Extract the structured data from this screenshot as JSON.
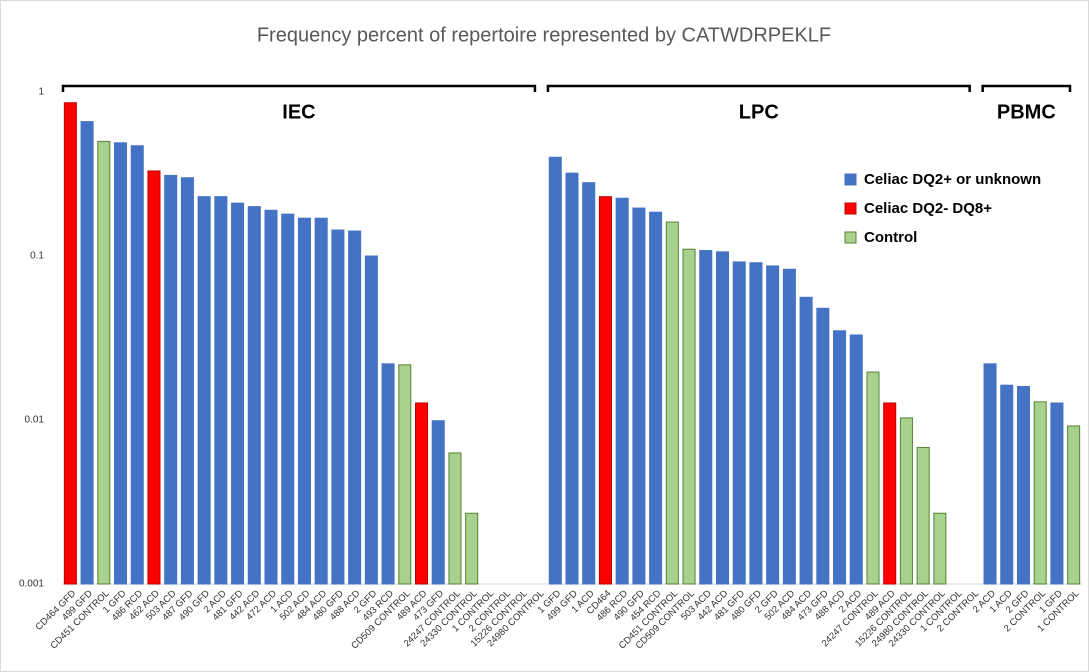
{
  "chart_data": {
    "type": "bar",
    "title": "Frequency percent of repertoire represented by CATWDRPEKLF",
    "yscale": "log",
    "ylim": [
      0.001,
      1
    ],
    "yticks": [
      0.001,
      0.01,
      0.1,
      1
    ],
    "grid": false,
    "legend": "upper right",
    "groups": [
      {
        "name": "IEC",
        "categories": [
          "CD464 GFD",
          "499 GFD",
          "CD451 CONTROL",
          "1 GFD",
          "486 RCD",
          "462 ACD",
          "503 ACD",
          "487 GFD",
          "490 GFD",
          "2 ACD",
          "481 GFD",
          "442 ACD",
          "472 ACD",
          "1 ACD",
          "502 ACD",
          "484 ACD",
          "480 GFD",
          "488 ACD",
          "2 GFD",
          "493 RCD",
          "CD509 CONTROL",
          "489 ACD",
          "473 GFD",
          "24247 CONTROL",
          "24330 CONTROL",
          "1 CONTROL",
          "2 CONTROL",
          "15226 CONTROL",
          "24980 CONTROL"
        ]
      },
      {
        "name": "LPC",
        "categories": [
          "1 GFD",
          "499 GFD",
          "1 ACD",
          "CD464",
          "486 RCD",
          "490 GFD",
          "454 RCD",
          "CD451 CONTROL",
          "CD509 CONTROL",
          "503 ACD",
          "442 ACD",
          "481 GFD",
          "480 GFD",
          "2 GFD",
          "502 ACD",
          "484 ACD",
          "473 GFD",
          "488 ACD",
          "2 ACD",
          "24247 CONTROL",
          "489 ACD",
          "15226 CONTROL",
          "24980 CONTROL",
          "24330 CONTROL",
          "1 CONTROL",
          "2 CONTROL"
        ]
      },
      {
        "name": "PBMC",
        "categories": [
          "2 ACD",
          "1 ACD",
          "2 GFD",
          "2 CONTROL",
          "1 GFD",
          "1 CONTROL"
        ]
      }
    ],
    "series": [
      {
        "name": "Celiac DQ2+ or unknown",
        "color": "#4472c4",
        "edgecolor": "#4472c4",
        "values": [
          null,
          0.66,
          null,
          0.49,
          0.47,
          null,
          0.31,
          0.3,
          0.23,
          0.23,
          0.21,
          0.2,
          0.19,
          0.18,
          0.17,
          0.17,
          0.144,
          0.142,
          0.1,
          0.022,
          null,
          null,
          0.0099,
          null,
          null,
          null,
          null,
          null,
          null,
          0.4,
          0.32,
          0.28,
          null,
          0.225,
          0.196,
          0.185,
          null,
          null,
          0.108,
          0.106,
          0.092,
          0.091,
          0.087,
          0.083,
          0.056,
          0.048,
          0.035,
          0.033,
          null,
          null,
          null,
          null,
          null,
          null,
          null,
          0.022,
          0.0163,
          0.016,
          null,
          0.0127,
          null
        ]
      },
      {
        "name": "Celiac DQ2- DQ8+",
        "color": "#ff0000",
        "edgecolor": "#c00000",
        "values": [
          0.86,
          null,
          null,
          null,
          null,
          0.33,
          null,
          null,
          null,
          null,
          null,
          null,
          null,
          null,
          null,
          null,
          null,
          null,
          null,
          null,
          null,
          0.0127,
          null,
          null,
          null,
          null,
          null,
          null,
          null,
          null,
          null,
          null,
          0.23,
          null,
          null,
          null,
          null,
          null,
          null,
          null,
          null,
          null,
          null,
          null,
          null,
          null,
          null,
          null,
          null,
          0.0127,
          null,
          null,
          null,
          null,
          null,
          null,
          null,
          null,
          null,
          null,
          null
        ]
      },
      {
        "name": "Control",
        "color": "#a9d18e",
        "edgecolor": "#548235",
        "values": [
          null,
          null,
          0.5,
          null,
          null,
          null,
          null,
          null,
          null,
          null,
          null,
          null,
          null,
          null,
          null,
          null,
          null,
          null,
          null,
          null,
          0.0217,
          null,
          null,
          0.0063,
          0.0027,
          null,
          null,
          null,
          null,
          null,
          null,
          null,
          null,
          null,
          null,
          null,
          0.161,
          0.11,
          null,
          null,
          null,
          null,
          null,
          null,
          null,
          null,
          null,
          null,
          0.0196,
          null,
          0.0103,
          0.0068,
          0.0027,
          null,
          null,
          null,
          null,
          null,
          0.0129,
          null,
          0.0092
        ]
      }
    ]
  }
}
